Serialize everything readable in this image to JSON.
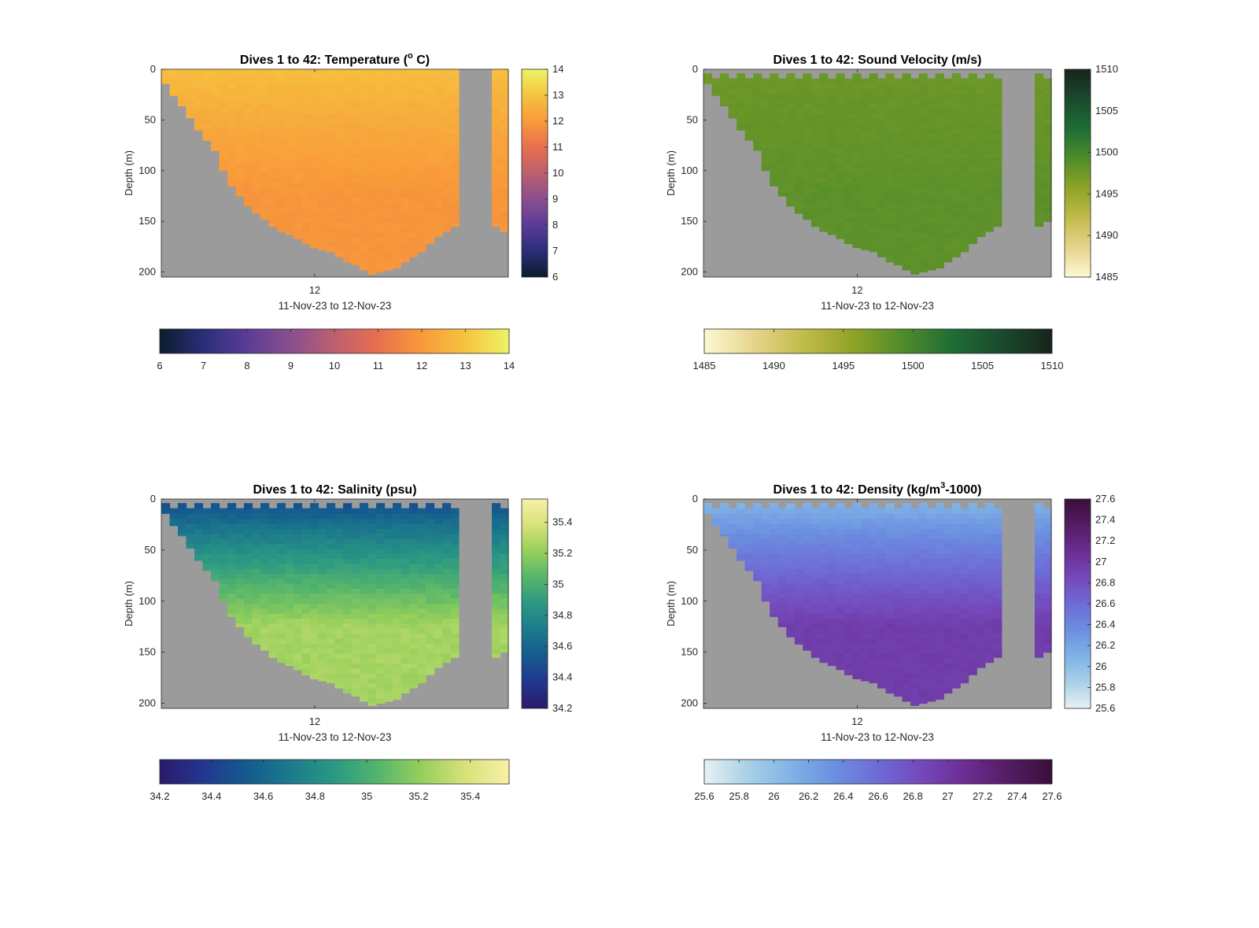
{
  "figure": {
    "xtick_label": "12",
    "xlabel": "11-Nov-23 to 12-Nov-23",
    "ylabel": "Depth (m)",
    "no_data_color": "#9b9b9b"
  },
  "chart_data": [
    {
      "type": "heatmap",
      "id": "temperature",
      "title_main": "Dives 1 to 42: Temperature (",
      "title_sup": "o",
      "title_tail": " C)",
      "xlabel": "11-Nov-23 to 12-Nov-23",
      "ylabel": "Depth (m)",
      "x_range": [
        "11-Nov-23",
        "12-Nov-23"
      ],
      "x_ticks": [
        "12"
      ],
      "y_ticks": [
        0,
        50,
        100,
        150,
        200
      ],
      "ylim": [
        0,
        205
      ],
      "y_reversed": true,
      "clim": [
        6,
        14
      ],
      "colorbar_ticks": [
        "6",
        "7",
        "8",
        "9",
        "10",
        "11",
        "12",
        "13",
        "14"
      ],
      "colormap": [
        "#0b1c2c",
        "#2a2e78",
        "#5a3c96",
        "#8a4f8e",
        "#bc5f6f",
        "#e8704f",
        "#f89a3a",
        "#f6c33f",
        "#ebf466"
      ],
      "surface_value": 12.9,
      "bottom_value": 11.9,
      "surface_gap": false,
      "dives": 42,
      "max_depth_profile": [
        14,
        26,
        36,
        48,
        60,
        70,
        80,
        100,
        115,
        125,
        135,
        142,
        148,
        155,
        160,
        163,
        167,
        172,
        176,
        178,
        180,
        185,
        190,
        193,
        198,
        202,
        200,
        198,
        196,
        190,
        185,
        180,
        172,
        165,
        160,
        155,
        0,
        0,
        0,
        0,
        155,
        160
      ],
      "missing_columns": [
        36,
        37,
        38,
        39
      ],
      "variability": 0.15
    },
    {
      "type": "heatmap",
      "id": "sound-velocity",
      "title_main": "Dives 1 to 42: Sound Velocity (m/s)",
      "title_sup": "",
      "title_tail": "",
      "xlabel": "11-Nov-23 to 12-Nov-23",
      "ylabel": "Depth (m)",
      "x_range": [
        "11-Nov-23",
        "12-Nov-23"
      ],
      "x_ticks": [
        "12"
      ],
      "y_ticks": [
        0,
        50,
        100,
        150,
        200
      ],
      "ylim": [
        0,
        205
      ],
      "y_reversed": true,
      "clim": [
        1485,
        1510
      ],
      "colorbar_ticks": [
        "1485",
        "1490",
        "1495",
        "1500",
        "1505",
        "1510"
      ],
      "colormap": [
        "#fdf8d2",
        "#e6d48c",
        "#c1bb4a",
        "#8fa326",
        "#4f8c2b",
        "#1e6d34",
        "#1a4a2e",
        "#17241a"
      ],
      "surface_value": 1497.5,
      "bottom_value": 1498.5,
      "surface_gap": true,
      "dives": 42,
      "max_depth_profile": [
        14,
        26,
        36,
        48,
        60,
        70,
        80,
        100,
        115,
        125,
        135,
        142,
        148,
        155,
        160,
        163,
        167,
        172,
        176,
        178,
        180,
        185,
        190,
        193,
        198,
        202,
        200,
        198,
        196,
        190,
        185,
        180,
        172,
        165,
        160,
        155,
        0,
        0,
        0,
        0,
        155,
        150
      ],
      "missing_columns": [
        36,
        37,
        38,
        39
      ],
      "variability": 0.5
    },
    {
      "type": "heatmap",
      "id": "salinity",
      "title_main": "Dives 1 to 42: Salinity (psu)",
      "title_sup": "",
      "title_tail": "",
      "xlabel": "11-Nov-23 to 12-Nov-23",
      "ylabel": "Depth (m)",
      "x_range": [
        "11-Nov-23",
        "12-Nov-23"
      ],
      "x_ticks": [
        "12"
      ],
      "y_ticks": [
        0,
        50,
        100,
        150,
        200
      ],
      "ylim": [
        0,
        205
      ],
      "y_reversed": true,
      "clim": [
        34.2,
        35.55
      ],
      "colorbar_ticks": [
        "34.2",
        "34.4",
        "34.6",
        "34.8",
        "35",
        "35.2",
        "35.4"
      ],
      "colormap": [
        "#2a1a6b",
        "#22378f",
        "#145b8e",
        "#1c7a8b",
        "#2b9883",
        "#55b56b",
        "#96cf5b",
        "#d7e27a",
        "#f8f0a6"
      ],
      "surface_value": 34.42,
      "bottom_value": 35.25,
      "surface_gap": true,
      "dives": 42,
      "max_depth_profile": [
        14,
        26,
        36,
        48,
        60,
        70,
        80,
        100,
        115,
        125,
        135,
        142,
        148,
        155,
        160,
        163,
        167,
        172,
        176,
        178,
        180,
        185,
        190,
        193,
        198,
        202,
        200,
        198,
        196,
        190,
        185,
        180,
        172,
        165,
        160,
        155,
        0,
        0,
        0,
        0,
        155,
        150
      ],
      "missing_columns": [
        36,
        37,
        38,
        39
      ],
      "variability": 0.06
    },
    {
      "type": "heatmap",
      "id": "density",
      "title_main": "Dives 1 to 42: Density (kg/m",
      "title_sup": "3",
      "title_tail": "-1000)",
      "xlabel": "11-Nov-23 to 12-Nov-23",
      "ylabel": "Depth (m)",
      "x_range": [
        "11-Nov-23",
        "12-Nov-23"
      ],
      "x_ticks": [
        "12"
      ],
      "y_ticks": [
        0,
        50,
        100,
        150,
        200
      ],
      "ylim": [
        0,
        205
      ],
      "y_reversed": true,
      "clim": [
        25.6,
        27.6
      ],
      "colorbar_ticks": [
        "25.6",
        "25.8",
        "26",
        "26.2",
        "26.4",
        "26.6",
        "26.8",
        "27",
        "27.2",
        "27.4",
        "27.6"
      ],
      "colormap": [
        "#e7f1f3",
        "#a9d0e6",
        "#7fb2e6",
        "#6b8fe0",
        "#6e6bd6",
        "#7448bb",
        "#6b2d92",
        "#541d64",
        "#3a0e3a"
      ],
      "surface_value": 26.02,
      "bottom_value": 26.95,
      "surface_gap": true,
      "dives": 42,
      "max_depth_profile": [
        14,
        26,
        36,
        48,
        60,
        70,
        80,
        100,
        115,
        125,
        135,
        142,
        148,
        155,
        160,
        163,
        167,
        172,
        176,
        178,
        180,
        185,
        190,
        193,
        198,
        202,
        200,
        198,
        196,
        190,
        185,
        180,
        172,
        165,
        160,
        155,
        0,
        0,
        0,
        0,
        155,
        150
      ],
      "missing_columns": [
        36,
        37,
        38,
        39
      ],
      "variability": 0.06
    }
  ]
}
